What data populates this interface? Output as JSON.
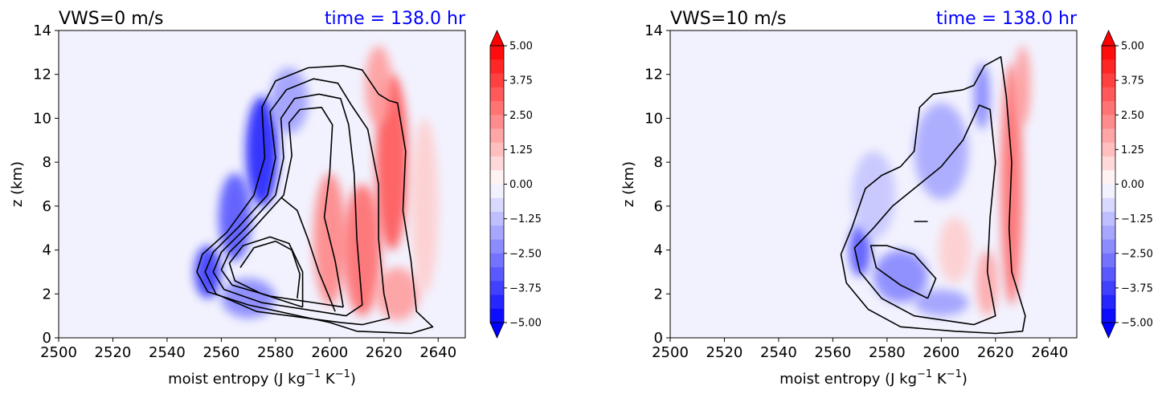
{
  "chart_data": [
    {
      "type": "contour",
      "title": "VWS=0 m/s",
      "time_label": "time = 138.0 hr",
      "xlabel": "moist entropy (J kg",
      "xlabel_sup1": "−1",
      "xlabel_mid": " K",
      "xlabel_sup2": "−1",
      "xlabel_end": ")",
      "ylabel": "z (km)",
      "xlim": [
        2500,
        2650
      ],
      "ylim": [
        0,
        14
      ],
      "xticks": [
        "2500",
        "2520",
        "2540",
        "2560",
        "2580",
        "2600",
        "2620",
        "2640"
      ],
      "yticks": [
        "0",
        "2",
        "4",
        "6",
        "8",
        "10",
        "12",
        "14"
      ],
      "colorbar": {
        "min": -5.0,
        "max": 5.0,
        "ticks": [
          "5.00",
          "3.75",
          "2.50",
          "1.25",
          "0.00",
          "−1.25",
          "−2.50",
          "−3.75",
          "−5.00"
        ],
        "extend": "both"
      },
      "blobs": [
        {
          "x": 2575,
          "y": 8.5,
          "rx": 6,
          "ry": 2.5,
          "v": -4.5
        },
        {
          "x": 2565,
          "y": 5.5,
          "rx": 6,
          "ry": 2.0,
          "v": -3.5
        },
        {
          "x": 2555,
          "y": 3.0,
          "rx": 5,
          "ry": 1.2,
          "v": -4.0
        },
        {
          "x": 2570,
          "y": 1.8,
          "rx": 10,
          "ry": 0.9,
          "v": -2.5
        },
        {
          "x": 2585,
          "y": 10.8,
          "rx": 7,
          "ry": 1.5,
          "v": -2.0
        },
        {
          "x": 2600,
          "y": 4.5,
          "rx": 6,
          "ry": 3.0,
          "v": 2.5
        },
        {
          "x": 2612,
          "y": 4.0,
          "rx": 7,
          "ry": 3.0,
          "v": 3.0
        },
        {
          "x": 2623,
          "y": 8.0,
          "rx": 6,
          "ry": 4.0,
          "v": 3.5
        },
        {
          "x": 2618,
          "y": 11.5,
          "rx": 5,
          "ry": 1.8,
          "v": 2.0
        },
        {
          "x": 2625,
          "y": 2.0,
          "rx": 8,
          "ry": 1.2,
          "v": 2.0
        },
        {
          "x": 2635,
          "y": 6.0,
          "rx": 5,
          "ry": 4.0,
          "v": 1.0
        }
      ],
      "contours": [
        [
          [
            2600,
            0.7
          ],
          [
            2570,
            1.5
          ],
          [
            2555,
            2.1
          ],
          [
            2551,
            3.0
          ],
          [
            2553,
            3.8
          ],
          [
            2562,
            4.8
          ],
          [
            2572,
            6.5
          ],
          [
            2576,
            8.2
          ],
          [
            2575,
            10.5
          ],
          [
            2580,
            11.7
          ],
          [
            2592,
            12.3
          ],
          [
            2605,
            12.4
          ],
          [
            2612,
            12.2
          ],
          [
            2618,
            11.1
          ],
          [
            2622,
            10.8
          ],
          [
            2625,
            10.7
          ],
          [
            2628,
            8.5
          ],
          [
            2627,
            5.8
          ],
          [
            2630,
            3.5
          ],
          [
            2632,
            1.2
          ],
          [
            2638,
            0.5
          ],
          [
            2630,
            0.2
          ],
          [
            2610,
            0.3
          ],
          [
            2600,
            0.7
          ]
        ],
        [
          [
            2604,
            0.7
          ],
          [
            2573,
            1.2
          ],
          [
            2558,
            2.0
          ],
          [
            2554,
            3.0
          ],
          [
            2557,
            3.9
          ],
          [
            2566,
            5.0
          ],
          [
            2577,
            6.5
          ],
          [
            2580,
            8.2
          ],
          [
            2578,
            10.3
          ],
          [
            2584,
            11.3
          ],
          [
            2594,
            11.8
          ],
          [
            2603,
            11.6
          ],
          [
            2608,
            10.6
          ],
          [
            2614,
            9.5
          ],
          [
            2618,
            7.0
          ],
          [
            2618,
            4.5
          ],
          [
            2620,
            2.0
          ],
          [
            2622,
            0.9
          ],
          [
            2612,
            0.6
          ],
          [
            2604,
            0.7
          ]
        ],
        [
          [
            2606,
            1.0
          ],
          [
            2575,
            1.6
          ],
          [
            2561,
            2.2
          ],
          [
            2557,
            3.0
          ],
          [
            2560,
            3.9
          ],
          [
            2569,
            5.0
          ],
          [
            2580,
            6.5
          ],
          [
            2583,
            8.2
          ],
          [
            2582,
            10.0
          ],
          [
            2587,
            10.9
          ],
          [
            2596,
            11.1
          ],
          [
            2604,
            10.9
          ],
          [
            2607,
            9.7
          ],
          [
            2609,
            7.5
          ],
          [
            2610,
            4.5
          ],
          [
            2612,
            1.5
          ],
          [
            2606,
            1.0
          ]
        ],
        [
          [
            2605,
            1.4
          ],
          [
            2578,
            1.9
          ],
          [
            2564,
            2.4
          ],
          [
            2560,
            3.1
          ],
          [
            2563,
            3.9
          ],
          [
            2572,
            5.0
          ],
          [
            2583,
            6.5
          ],
          [
            2586,
            8.3
          ],
          [
            2585,
            9.8
          ],
          [
            2589,
            10.4
          ],
          [
            2597,
            10.5
          ],
          [
            2601,
            9.7
          ],
          [
            2600,
            7.5
          ],
          [
            2598,
            5.5
          ],
          [
            2602,
            3.5
          ],
          [
            2605,
            1.4
          ]
        ],
        [
          [
            2582,
            6.4
          ],
          [
            2588,
            5.8
          ],
          [
            2592,
            4.5
          ],
          [
            2596,
            3.0
          ],
          [
            2602,
            1.2
          ]
        ],
        [
          [
            2590,
            1.4
          ],
          [
            2575,
            2.0
          ],
          [
            2565,
            2.6
          ],
          [
            2563,
            3.4
          ],
          [
            2568,
            4.2
          ],
          [
            2578,
            4.6
          ],
          [
            2585,
            4.3
          ],
          [
            2590,
            3.0
          ],
          [
            2590,
            1.4
          ]
        ],
        [
          [
            2567,
            3.2
          ],
          [
            2572,
            4.1
          ],
          [
            2580,
            4.4
          ],
          [
            2586,
            4.0
          ],
          [
            2589,
            2.9
          ],
          [
            2588,
            1.8
          ]
        ]
      ]
    },
    {
      "type": "contour",
      "title": "VWS=10 m/s",
      "time_label": "time = 138.0 hr",
      "xlabel": "moist entropy (J kg",
      "xlabel_sup1": "−1",
      "xlabel_mid": " K",
      "xlabel_sup2": "−1",
      "xlabel_end": ")",
      "ylabel": "z (km)",
      "xlim": [
        2500,
        2650
      ],
      "ylim": [
        0,
        14
      ],
      "xticks": [
        "2500",
        "2520",
        "2540",
        "2560",
        "2580",
        "2600",
        "2620",
        "2640"
      ],
      "yticks": [
        "0",
        "2",
        "4",
        "6",
        "8",
        "10",
        "12",
        "14"
      ],
      "colorbar": {
        "min": -5.0,
        "max": 5.0,
        "ticks": [
          "5.00",
          "3.75",
          "2.50",
          "1.25",
          "0.00",
          "−1.25",
          "−2.50",
          "−3.75",
          "−5.00"
        ],
        "extend": "both"
      },
      "blobs": [
        {
          "x": 2570,
          "y": 4.0,
          "rx": 4,
          "ry": 1.2,
          "v": -3.5
        },
        {
          "x": 2585,
          "y": 2.8,
          "rx": 10,
          "ry": 1.2,
          "v": -2.5
        },
        {
          "x": 2600,
          "y": 1.6,
          "rx": 10,
          "ry": 0.6,
          "v": -2.0
        },
        {
          "x": 2600,
          "y": 8.5,
          "rx": 10,
          "ry": 2.2,
          "v": -1.8
        },
        {
          "x": 2615,
          "y": 11.0,
          "rx": 3,
          "ry": 1.5,
          "v": -2.5
        },
        {
          "x": 2575,
          "y": 6.5,
          "rx": 8,
          "ry": 2.0,
          "v": -1.2
        },
        {
          "x": 2605,
          "y": 4.0,
          "rx": 6,
          "ry": 1.5,
          "v": 1.0
        },
        {
          "x": 2626,
          "y": 7.0,
          "rx": 4,
          "ry": 5.5,
          "v": 3.0
        },
        {
          "x": 2617,
          "y": 2.5,
          "rx": 4,
          "ry": 1.5,
          "v": 1.8
        },
        {
          "x": 2630,
          "y": 11.5,
          "rx": 3,
          "ry": 1.8,
          "v": 2.0
        }
      ],
      "contours": [
        [
          [
            2605,
            0.3
          ],
          [
            2585,
            0.5
          ],
          [
            2573,
            1.3
          ],
          [
            2565,
            2.5
          ],
          [
            2563,
            3.8
          ],
          [
            2567,
            5.0
          ],
          [
            2572,
            6.8
          ],
          [
            2578,
            7.4
          ],
          [
            2585,
            7.8
          ],
          [
            2590,
            8.5
          ],
          [
            2592,
            10.5
          ],
          [
            2597,
            11.1
          ],
          [
            2608,
            11.3
          ],
          [
            2612,
            11.5
          ],
          [
            2616,
            12.4
          ],
          [
            2622,
            12.8
          ],
          [
            2624,
            11.0
          ],
          [
            2626,
            8.0
          ],
          [
            2625,
            5.0
          ],
          [
            2626,
            3.0
          ],
          [
            2631,
            1.0
          ],
          [
            2630,
            0.3
          ],
          [
            2620,
            0.2
          ],
          [
            2605,
            0.3
          ]
        ],
        [
          [
            2612,
            0.6
          ],
          [
            2590,
            1.0
          ],
          [
            2578,
            1.8
          ],
          [
            2570,
            3.0
          ],
          [
            2568,
            4.1
          ],
          [
            2575,
            5.0
          ],
          [
            2582,
            6.0
          ],
          [
            2590,
            6.8
          ],
          [
            2600,
            7.8
          ],
          [
            2608,
            9.0
          ],
          [
            2614,
            10.6
          ],
          [
            2618,
            10.4
          ],
          [
            2620,
            8.0
          ],
          [
            2618,
            5.5
          ],
          [
            2617,
            3.0
          ],
          [
            2620,
            1.0
          ],
          [
            2612,
            0.6
          ]
        ],
        [
          [
            2595,
            1.8
          ],
          [
            2585,
            2.4
          ],
          [
            2576,
            3.2
          ],
          [
            2574,
            4.2
          ],
          [
            2580,
            4.2
          ],
          [
            2590,
            3.8
          ],
          [
            2598,
            2.7
          ],
          [
            2595,
            1.8
          ]
        ],
        [
          [
            2590,
            5.3
          ],
          [
            2595,
            5.3
          ]
        ]
      ]
    }
  ]
}
